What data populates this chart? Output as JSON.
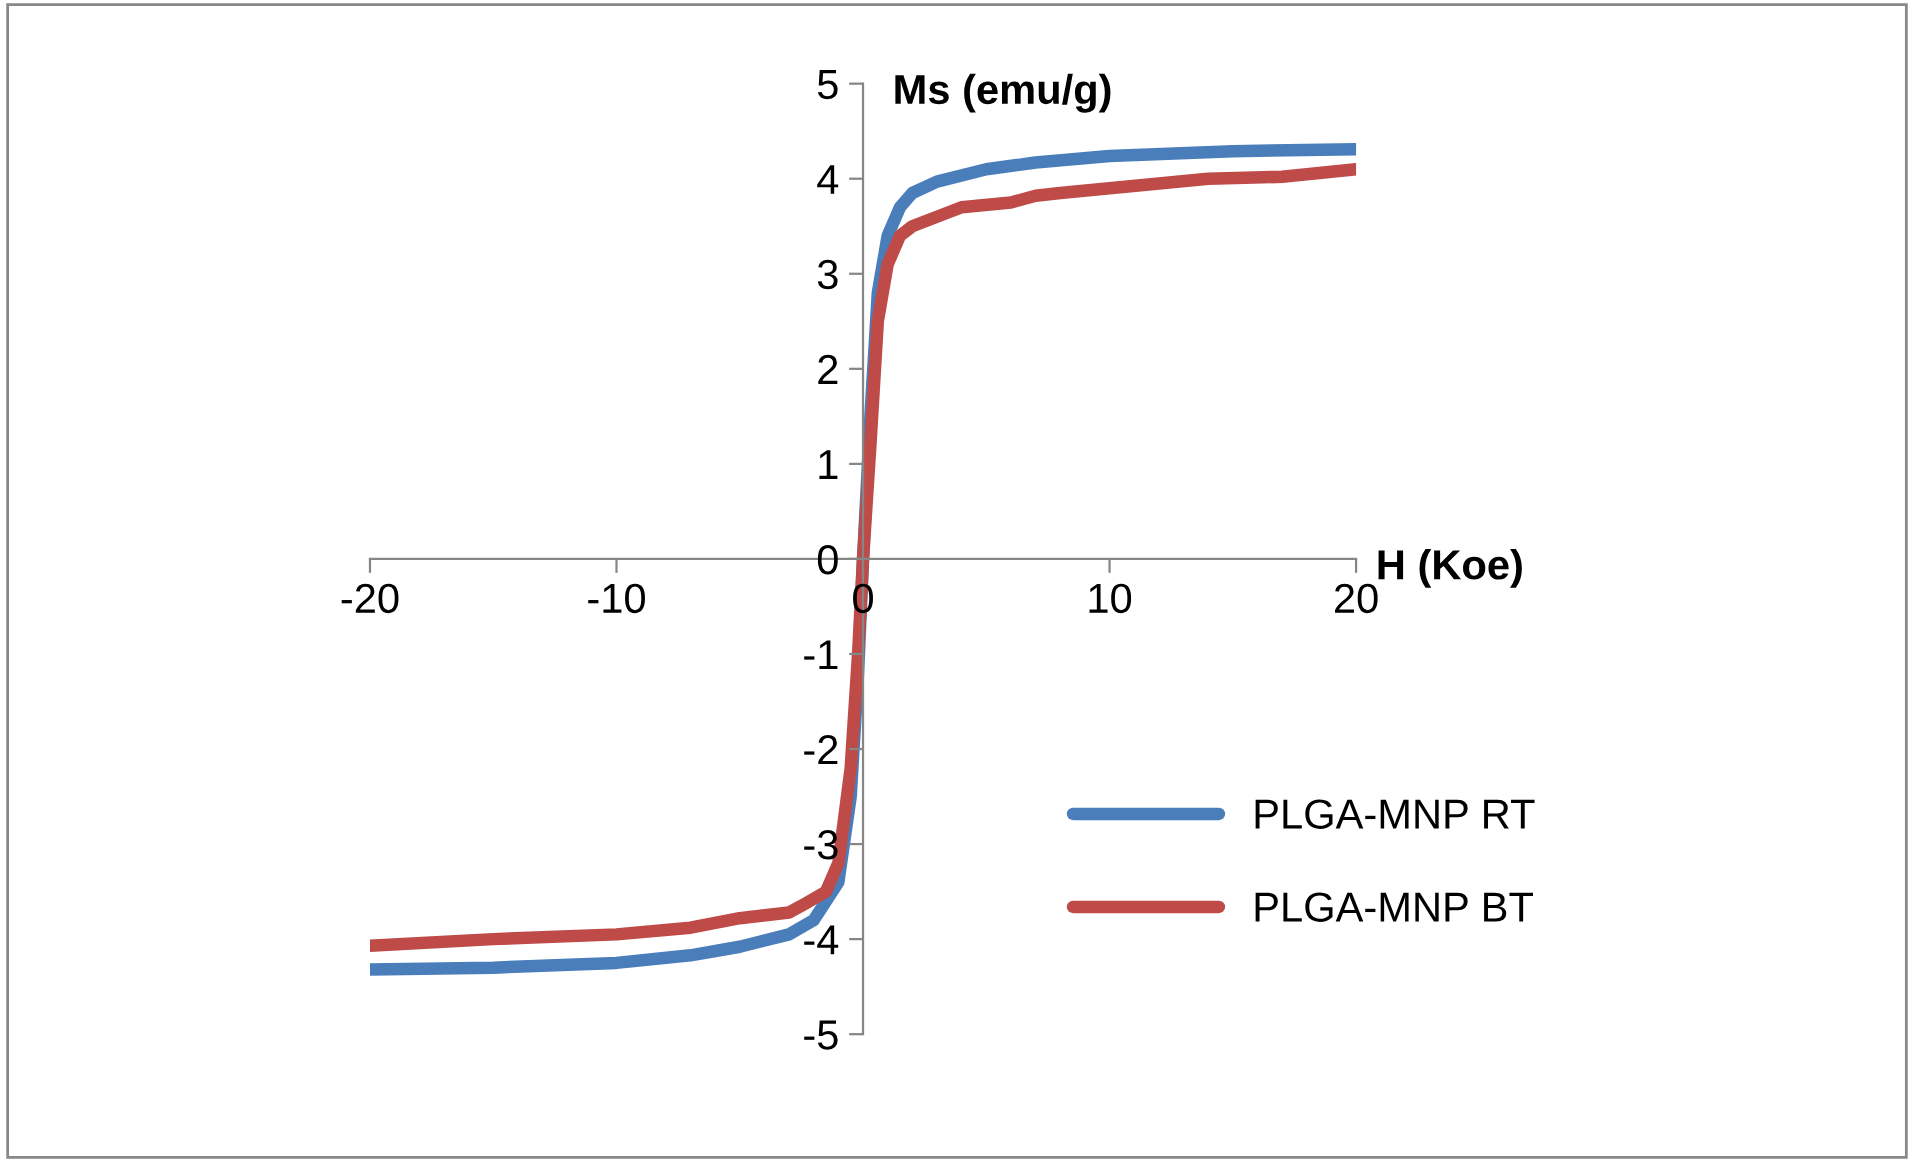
{
  "chart_data": {
    "type": "line",
    "xlabel": "H (Koe)",
    "ylabel": "Ms (emu/g)",
    "xlim": [
      -20,
      20
    ],
    "xticks": [
      -20,
      -10,
      0,
      10,
      20
    ],
    "ylim": [
      -5,
      5
    ],
    "yticks": [
      -5,
      -4,
      -3,
      -2,
      -1,
      0,
      1,
      2,
      3,
      4,
      5
    ],
    "grid": false,
    "legend": "bottom right",
    "marker": "none",
    "line_style": "solid",
    "series": [
      {
        "name": "PLGA-MNP RT",
        "color": "#4a7ebb",
        "x": [
          -20,
          -15,
          -10,
          -7,
          -5,
          -3,
          -2,
          -1,
          -0.5,
          -0.2,
          0,
          0.3,
          0.6,
          1,
          1.5,
          2,
          3,
          5,
          7,
          10,
          15,
          20
        ],
        "values": [
          -4.32,
          -4.3,
          -4.25,
          -4.17,
          -4.08,
          -3.95,
          -3.8,
          -3.4,
          -2.5,
          -1.2,
          0,
          1.5,
          2.8,
          3.4,
          3.7,
          3.85,
          3.97,
          4.1,
          4.17,
          4.24,
          4.29,
          4.31
        ]
      },
      {
        "name": "PLGA-MNP BT",
        "color": "#be4b48",
        "x": [
          -20,
          -15,
          -10,
          -7,
          -5,
          -3,
          -2.5,
          -1.5,
          -1,
          -0.5,
          -0.2,
          0,
          0.3,
          0.6,
          1,
          1.5,
          2,
          2.5,
          3,
          4,
          6,
          7,
          8,
          10,
          14,
          17,
          20
        ],
        "values": [
          -4.07,
          -4.0,
          -3.95,
          -3.88,
          -3.78,
          -3.72,
          -3.65,
          -3.5,
          -3.2,
          -2.2,
          -1.0,
          0,
          1.2,
          2.5,
          3.1,
          3.4,
          3.5,
          3.55,
          3.6,
          3.7,
          3.75,
          3.82,
          3.85,
          3.9,
          4.0,
          4.02,
          4.1
        ]
      }
    ]
  }
}
